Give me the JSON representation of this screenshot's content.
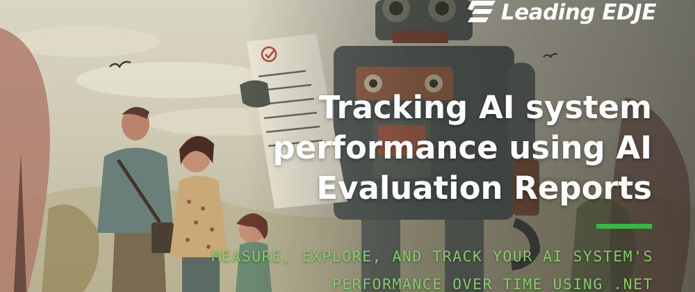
{
  "brand": {
    "name": "Leading EDJE",
    "accent_color": "#3bb54a",
    "logo_icon": "leading-edje-logo-mark"
  },
  "headline": {
    "title": "Tracking AI system performance using AI Evaluation Reports",
    "subtitle": "MEASURE, EXPLORE, AND TRACK YOUR AI SYSTEM'S PERFORMANCE OVER TIME USING .NET",
    "title_color": "#ffffff",
    "subtitle_color": "#84cc66"
  },
  "illustration": {
    "description_icon": "robot-and-family-illustration"
  }
}
